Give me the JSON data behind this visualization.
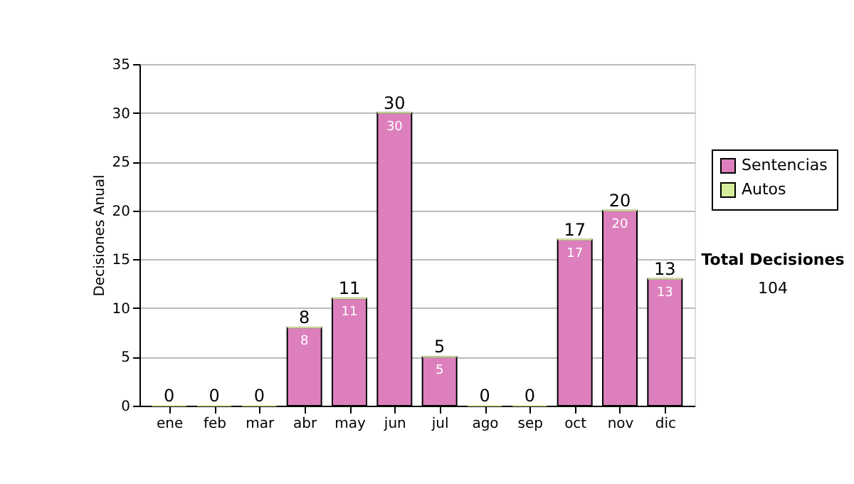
{
  "chart_data": {
    "type": "bar",
    "ylabel": "Decisiones Anual",
    "categories": [
      "ene",
      "feb",
      "mar",
      "abr",
      "may",
      "jun",
      "jul",
      "ago",
      "sep",
      "oct",
      "nov",
      "dic"
    ],
    "series": [
      {
        "name": "Sentencias",
        "color": "#dd7fbd",
        "values": [
          0,
          0,
          0,
          8,
          11,
          30,
          5,
          0,
          0,
          17,
          20,
          13
        ],
        "value_labels": [
          null,
          null,
          null,
          "8",
          "11",
          "30",
          "5",
          null,
          null,
          "17",
          "20",
          "13"
        ]
      },
      {
        "name": "Autos",
        "color": "#d6ec9c",
        "values": [
          0,
          0,
          0,
          0,
          0,
          0,
          0,
          0,
          0,
          0,
          0,
          0
        ]
      }
    ],
    "stacked": true,
    "totals": [
      "0",
      "0",
      "0",
      "8",
      "11",
      "30",
      "5",
      "0",
      "0",
      "17",
      "20",
      "13"
    ],
    "ylim": [
      0,
      35
    ],
    "yticks": [
      0,
      5,
      10,
      15,
      20,
      25,
      30,
      35
    ],
    "grid": "y",
    "legend": "right",
    "annotations": [
      "Total Decisiones",
      "104"
    ]
  }
}
